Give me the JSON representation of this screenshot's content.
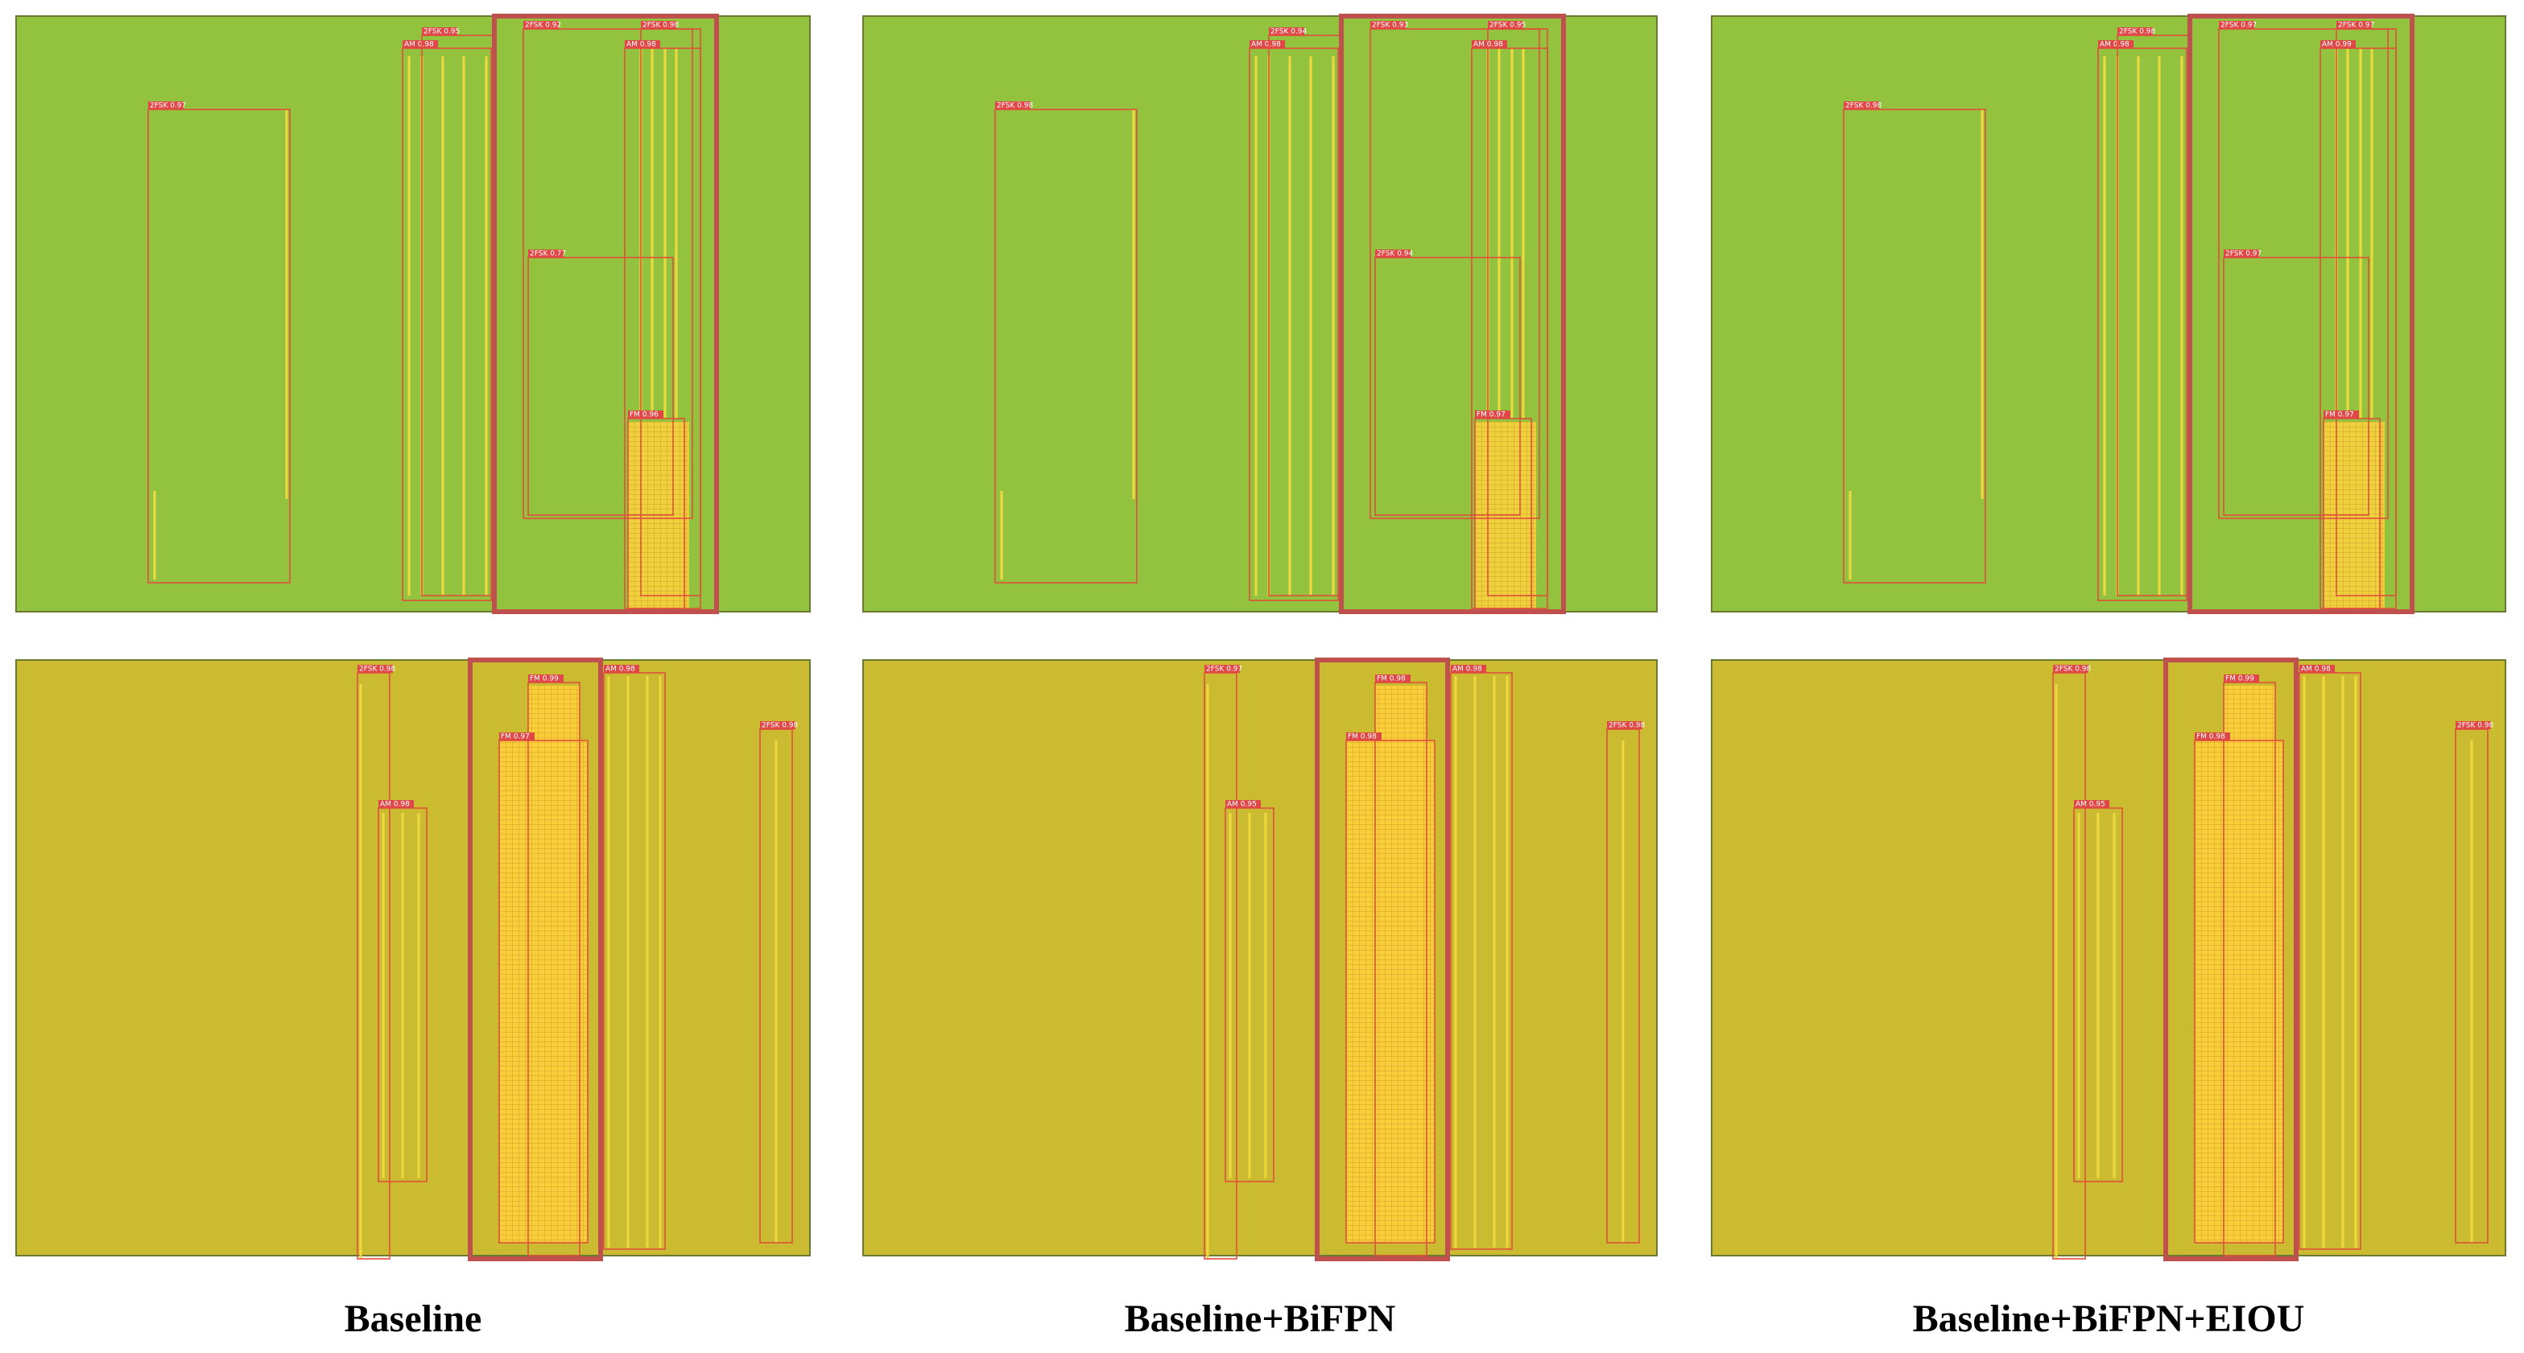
{
  "panels": [
    {
      "detections": [
        "2FSK 0.97",
        "AM 0.98",
        "2FSK 0.95",
        "2FSK 0.92",
        "2FSK 0.98",
        "AM 0.98",
        "2FSK 0.77",
        "FM 0.96"
      ]
    },
    {
      "detections": [
        "2FSK 0.98",
        "AM 0.98",
        "2FSK 0.94",
        "2FSK 0.93",
        "2FSK 0.95",
        "AM 0.98",
        "2FSK 0.94",
        "FM 0.97"
      ]
    },
    {
      "detections": [
        "2FSK 0.98",
        "AM 0.98",
        "2FSK 0.98",
        "2FSK 0.97",
        "2FSK 0.97",
        "AM 0.99",
        "2FSK 0.97",
        "FM 0.97"
      ]
    },
    {
      "detections": [
        "2FSK 0.98",
        "AM 0.98",
        "FM 0.99",
        "FM 0.97",
        "AM 0.98",
        "2FSK 0.98"
      ]
    },
    {
      "detections": [
        "2FSK 0.97",
        "AM 0.95",
        "FM 0.98",
        "FM 0.98",
        "AM 0.98",
        "2FSK 0.98"
      ]
    },
    {
      "detections": [
        "2FSK 0.98",
        "AM 0.95",
        "FM 0.99",
        "FM 0.98",
        "AM 0.98",
        "2FSK 0.98"
      ]
    }
  ],
  "captions": [
    "Baseline",
    "Baseline+BiFPN",
    "Baseline+BiFPN+EIOU"
  ]
}
